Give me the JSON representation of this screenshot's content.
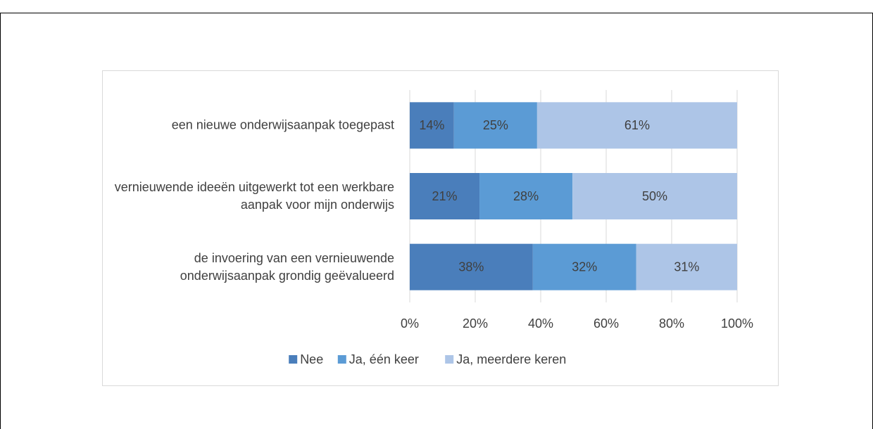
{
  "chart_data": {
    "type": "stacked-bar-horizontal",
    "categories": [
      "een nieuwe onderwijsaanpak toegepast",
      "vernieuwende ideeën uitgewerkt tot een werkbare aanpak voor mijn onderwijs",
      "de invoering van een vernieuwende onderwijsaanpak grondig geëvalueerd"
    ],
    "series": [
      {
        "name": "Nee",
        "color": "#4a7ebb",
        "values": [
          13.5,
          21.3,
          37.6
        ],
        "value_labels": [
          "14%",
          "21%",
          "38%"
        ]
      },
      {
        "name": "Ja, één keer",
        "color": "#5b9bd5",
        "values": [
          25.4,
          28.4,
          31.6
        ],
        "value_labels": [
          "25%",
          "28%",
          "32%"
        ]
      },
      {
        "name": "Ja, meerdere keren",
        "color": "#adc5e7",
        "values": [
          61.1,
          50.3,
          30.8
        ],
        "value_labels": [
          "61%",
          "50%",
          "31%"
        ]
      }
    ],
    "xlim": [
      0,
      100
    ],
    "xticks": [
      {
        "value": 0,
        "label": "0%"
      },
      {
        "value": 20,
        "label": "20%"
      },
      {
        "value": 40,
        "label": "40%"
      },
      {
        "value": 60,
        "label": "60%"
      },
      {
        "value": 80,
        "label": "80%"
      },
      {
        "value": 100,
        "label": "100%"
      }
    ],
    "grid": true,
    "legend": "bottom"
  }
}
